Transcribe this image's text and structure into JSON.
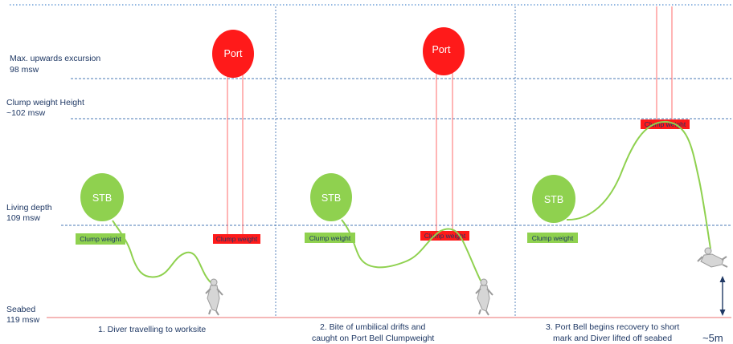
{
  "depth_labels": {
    "upwards_excursion": {
      "line1": "Max. upwards excursion",
      "line2": "98 msw"
    },
    "clump_weight_height": {
      "line1": "Clump weight Height",
      "line2": "~102 msw"
    },
    "living_depth": {
      "line1": "Living depth",
      "line2": "109 msw"
    },
    "seabed": {
      "line1": "Seabed",
      "line2": "119 msw"
    }
  },
  "bells": {
    "stb_label": "STB",
    "port_label": "Port"
  },
  "tags": {
    "clump_weight": "Clump weight"
  },
  "panels": [
    {
      "caption_line1": "1. Diver travelling to worksite",
      "caption_line2": ""
    },
    {
      "caption_line1": "2. Bite of umbilical drifts and",
      "caption_line2": "caught on Port Bell Clumpweight"
    },
    {
      "caption_line1": "3. Port Bell begins recovery to short",
      "caption_line2": "mark and Diver lifted off seabed"
    }
  ],
  "scale_label": "~5m",
  "colors": {
    "stb_bell": "#8fd14f",
    "port_bell": "#ff1a1a",
    "umbilical": "#8fd14f",
    "clump_weight_port": "#ff1a1a",
    "clump_weight_stb": "#8fd14f",
    "depth_text": "#1f3864",
    "guide_lines": "#4a7ab5",
    "seabed_line": "#f2a0a0"
  }
}
